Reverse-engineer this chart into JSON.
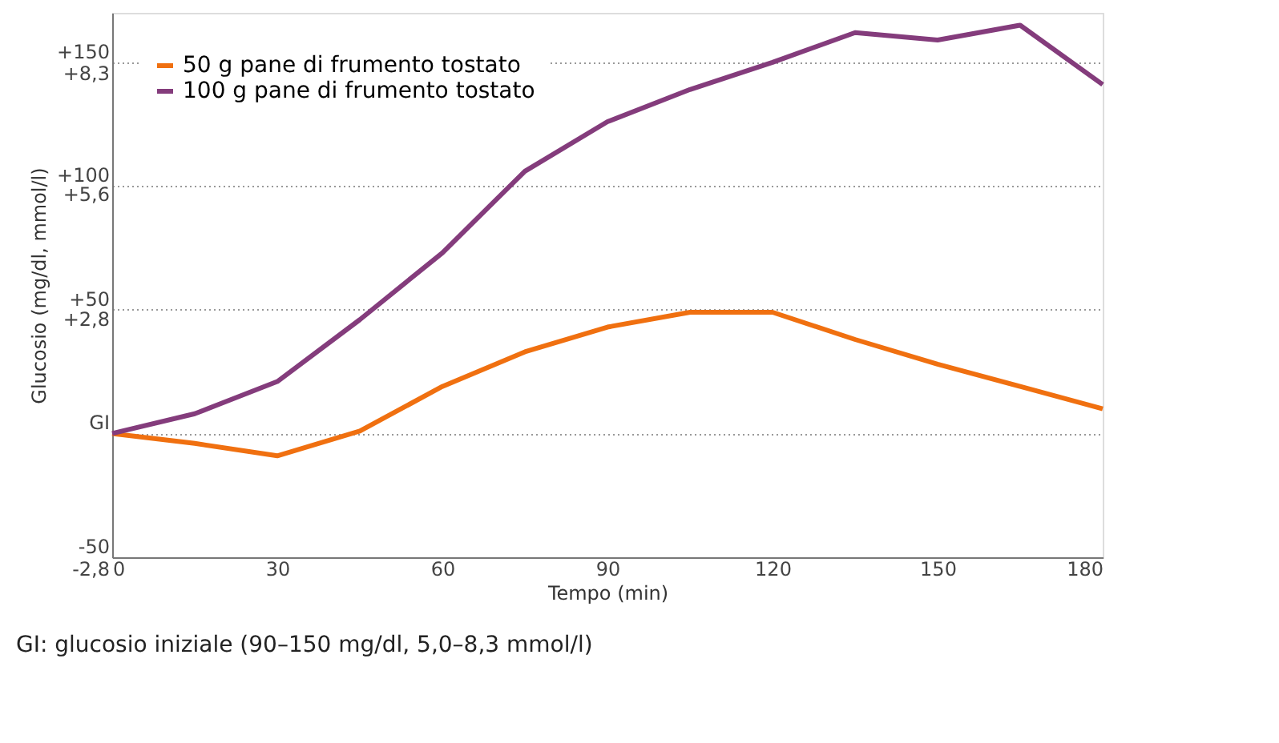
{
  "chart_data": {
    "type": "line",
    "xlabel": "Tempo (min)",
    "ylabel": "Glucosio  (mg/dl, mmol/l)",
    "x": [
      0,
      15,
      30,
      45,
      60,
      75,
      90,
      105,
      120,
      135,
      150,
      165,
      180
    ],
    "series": [
      {
        "name": "50 g pane di frumento tostato",
        "color": "#f07010",
        "values": [
          0,
          -4,
          -9,
          1,
          19,
          33,
          43,
          49,
          49,
          38,
          28,
          19,
          10
        ]
      },
      {
        "name": "100 g pane di frumento tostato",
        "color": "#843c7c",
        "values": [
          0,
          8,
          21,
          46,
          73,
          106,
          126,
          139,
          150,
          162,
          159,
          165,
          141
        ]
      }
    ],
    "xlim": [
      0,
      180
    ],
    "xticks": [
      0,
      30,
      60,
      90,
      120,
      150,
      180
    ],
    "ylim": [
      -50,
      170
    ],
    "yticks": [
      -50,
      {
        "value": 0,
        "label": "GI"
      },
      {
        "value": 50,
        "label": "+50"
      },
      {
        "value": 100,
        "label": "+100"
      },
      {
        "value": 150,
        "label": "+150"
      }
    ],
    "y2lim": [
      -2.8,
      9.4
    ],
    "y2ticks": [
      {
        "value": -2.8,
        "label": "-2,8"
      },
      {
        "value": 2.8,
        "label": "+2,8"
      },
      {
        "value": 5.6,
        "label": "+5,6"
      },
      {
        "value": 8.3,
        "label": "+8,3"
      }
    ],
    "grid": "y",
    "legend": "top left",
    "marker": "none",
    "line_style": "solid",
    "annotations": [
      "GI: glucosio iniziale (90–150 mg/dl, 5,0–8,3 mmol/l)"
    ]
  }
}
